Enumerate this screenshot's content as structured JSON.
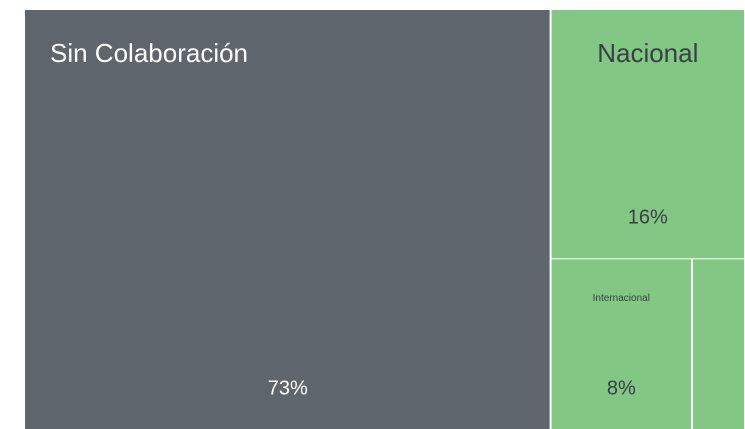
{
  "chart_data": {
    "type": "treemap",
    "categories": [
      "Sin Colaboración",
      "Nacional",
      "Internacional",
      null
    ],
    "values": [
      73,
      16,
      8,
      3
    ],
    "value_labels": [
      "73%",
      "16%",
      "8%",
      null
    ],
    "colors": [
      "#5f656c",
      "#82c784",
      "#82c784",
      "#82c784"
    ]
  }
}
